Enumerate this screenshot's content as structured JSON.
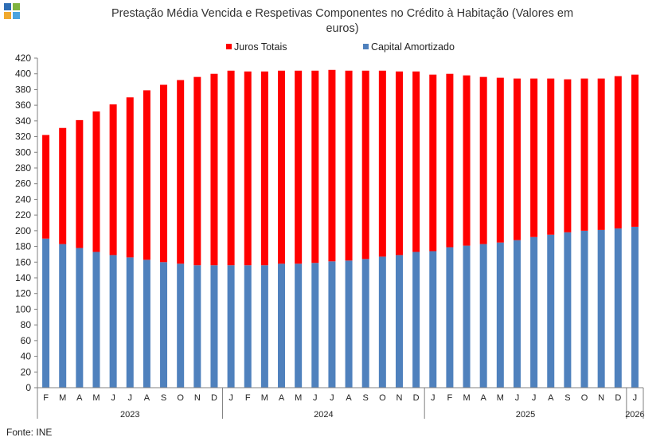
{
  "logo": {
    "colors": [
      "#2e6db4",
      "#7fb33f",
      "#f0a92e",
      "#4aa3df"
    ]
  },
  "footer": {
    "source": "Fonte: INE"
  },
  "chart_data": {
    "type": "bar",
    "stacked": true,
    "title": "Prestação Média Vencida  e Respetivas Componentes  no Crédito à Habitação (Valores em euros)",
    "title_lines": [
      "Prestação Média Vencida  e Respetivas Componentes  no Crédito à Habitação (Valores em",
      "euros)"
    ],
    "ylim": [
      0,
      420
    ],
    "yticks": [
      0,
      20,
      40,
      60,
      80,
      100,
      120,
      140,
      160,
      180,
      200,
      220,
      240,
      260,
      280,
      300,
      320,
      340,
      360,
      380,
      400,
      420
    ],
    "legend_position": "top",
    "categories": [
      "F",
      "M",
      "A",
      "M",
      "J",
      "J",
      "A",
      "S",
      "O",
      "N",
      "D",
      "J",
      "F",
      "M",
      "A",
      "M",
      "J",
      "J",
      "A",
      "S",
      "O",
      "N",
      "D",
      "J",
      "F",
      "M",
      "A",
      "M",
      "J",
      "J",
      "A",
      "S",
      "O",
      "N",
      "D",
      "J"
    ],
    "years": [
      {
        "label": "2023",
        "start": 0,
        "count": 11
      },
      {
        "label": "2024",
        "start": 11,
        "count": 12
      },
      {
        "label": "2025",
        "start": 23,
        "count": 12
      },
      {
        "label": "2026",
        "start": 35,
        "count": 1
      }
    ],
    "series": [
      {
        "name": "Capital Amortizado",
        "color": "#4f81bd",
        "values": [
          190,
          183,
          178,
          173,
          169,
          166,
          163,
          160,
          158,
          156,
          156,
          156,
          156,
          156,
          158,
          158,
          159,
          161,
          162,
          164,
          167,
          169,
          173,
          174,
          179,
          181,
          183,
          185,
          188,
          192,
          195,
          198,
          200,
          201,
          203,
          205
        ]
      },
      {
        "name": "Juros Totais",
        "color": "#ff0000",
        "values": [
          132,
          148,
          163,
          179,
          192,
          204,
          216,
          226,
          234,
          240,
          244,
          248,
          247,
          247,
          246,
          246,
          245,
          244,
          242,
          240,
          237,
          234,
          230,
          225,
          221,
          217,
          213,
          210,
          206,
          202,
          199,
          195,
          194,
          193,
          194,
          194
        ]
      }
    ],
    "legend_order": [
      "Juros Totais",
      "Capital Amortizado"
    ]
  }
}
